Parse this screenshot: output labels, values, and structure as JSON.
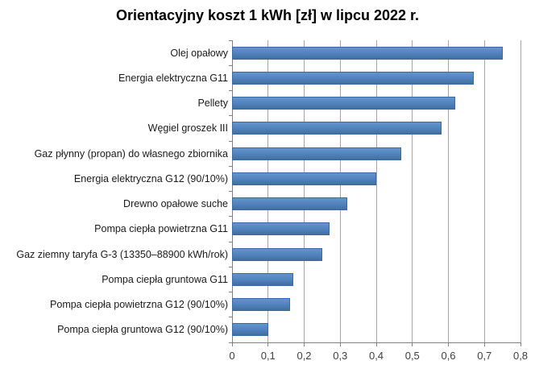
{
  "title": "Orientacyjny koszt 1 kWh [zł] w lipcu 2022 r.",
  "chart_data": {
    "type": "bar",
    "orientation": "horizontal",
    "title": "Orientacyjny koszt 1 kWh [zł] w lipcu 2022 r.",
    "xlabel": "",
    "ylabel": "",
    "xlim": [
      0,
      0.8
    ],
    "grid": true,
    "legend": false,
    "categories": [
      "Olej opałowy",
      "Energia elektryczna G11",
      "Pellety",
      "Węgiel groszek III",
      "Gaz płynny (propan) do własnego zbiornika",
      "Energia elektryczna G12 (90/10%)",
      "Drewno opałowe suche",
      "Pompa ciepła powietrzna G11",
      "Gaz ziemny taryfa G-3 (13350–88900 kWh/rok)",
      "Pompa ciepła gruntowa G11",
      "Pompa ciepła powietrzna G12 (90/10%)",
      "Pompa ciepła gruntowa G12 (90/10%)"
    ],
    "values": [
      0.75,
      0.67,
      0.62,
      0.58,
      0.47,
      0.4,
      0.32,
      0.27,
      0.25,
      0.17,
      0.16,
      0.1
    ],
    "x_ticks": [
      "0",
      "0,1",
      "0,2",
      "0,3",
      "0,4",
      "0,5",
      "0,6",
      "0,7",
      "0,8"
    ],
    "colors": {
      "bar_fill": "#4f81bd",
      "bar_fill_light": "#6494c9",
      "bar_fill_dark": "#436f9e",
      "bar_border": "#3c69a5",
      "gridline": "#a6a6a6",
      "axis_line": "#808080",
      "tick_label": "#404040",
      "category_label": "#1a1a1a",
      "background": "#ffffff"
    }
  }
}
